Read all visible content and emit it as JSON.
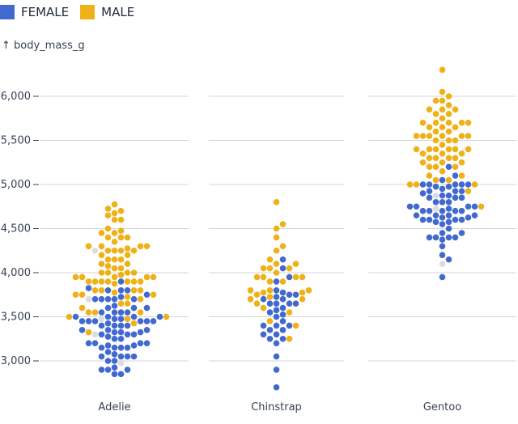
{
  "legend": {
    "female": "FEMALE",
    "male": "MALE"
  },
  "chart_data": {
    "type": "scatter",
    "subtype": "beeswarm",
    "ylabel": "↑ body_mass_g",
    "yticks": [
      3000,
      3500,
      4000,
      4500,
      5000,
      5500,
      6000
    ],
    "ytick_labels": [
      "3,000",
      "3,500",
      "4,000",
      "4,500",
      "5,000",
      "5,500",
      "6,000"
    ],
    "ylim": [
      2600,
      6400
    ],
    "grid": true,
    "legend_position": "top-left",
    "colors": {
      "FEMALE": "#4269d0",
      "MALE": "#efb118",
      "null": "#dddddd"
    },
    "facets": [
      {
        "species": "Adelie",
        "FEMALE": [
          3475,
          3250,
          3450,
          3625,
          3200,
          3700,
          3450,
          3325,
          3400,
          3800,
          3800,
          3200,
          3150,
          3250,
          3300,
          3325,
          3100,
          3300,
          3000,
          3450,
          3150,
          3500,
          3450,
          2900,
          3550,
          2850,
          3150,
          3600,
          2850,
          3350,
          3050,
          3600,
          3550,
          3700,
          3700,
          3550,
          3200,
          3800,
          3350,
          3500,
          3600,
          3550,
          3400,
          3300,
          3700,
          2900,
          3725,
          3075,
          2925,
          3750,
          3175,
          3825,
          3200,
          3900,
          2900,
          3350,
          3150,
          3450,
          3050,
          3275,
          3050,
          3325,
          3500,
          3425,
          3175,
          3400,
          3400,
          3050,
          3000,
          3475,
          3450,
          3700,
          3500
        ],
        "MALE": [
          3750,
          3650,
          4675,
          3800,
          4400,
          4500,
          4200,
          3600,
          3950,
          3800,
          3550,
          3950,
          3900,
          3900,
          4150,
          3950,
          4650,
          3900,
          4400,
          4600,
          3425,
          4150,
          4300,
          4050,
          3700,
          3800,
          3750,
          4400,
          4050,
          3950,
          4100,
          4450,
          3900,
          4150,
          4250,
          3900,
          4000,
          4700,
          4200,
          3550,
          3800,
          3950,
          4300,
          4450,
          4300,
          4350,
          4100,
          4725,
          4250,
          3550,
          3900,
          4775,
          4600,
          4275,
          4075,
          3775,
          3325,
          3500,
          3875,
          4000,
          4300,
          4000,
          3500,
          4475,
          3900,
          3975,
          4250,
          3475,
          3725,
          3650,
          4250,
          3750,
          4000
        ],
        "null": [
          4250,
          3700,
          3475,
          3300,
          2975
        ]
      },
      {
        "species": "Chinstrap",
        "FEMALE": [
          3500,
          3900,
          3650,
          3525,
          3725,
          3950,
          3250,
          3750,
          4150,
          3700,
          3800,
          3775,
          3700,
          4050,
          3575,
          3050,
          3300,
          3650,
          3450,
          3400,
          3600,
          2900,
          3400,
          3300,
          3350,
          3250,
          3400,
          3650,
          3350,
          2700,
          3650,
          3750,
          3550,
          3200
        ],
        "MALE": [
          3900,
          3800,
          4550,
          3950,
          4050,
          4400,
          4050,
          3700,
          3250,
          4050,
          3725,
          3650,
          3800,
          3450,
          4100,
          3950,
          4300,
          3900,
          4500,
          3750,
          3800,
          4800,
          4150,
          4100,
          3600,
          3775,
          3950,
          4000,
          3700,
          3550,
          3775,
          3400,
          4250,
          3950
        ],
        "null": []
      },
      {
        "species": "Gentoo",
        "FEMALE": [
          4500,
          4450,
          4550,
          4800,
          4400,
          4650,
          4650,
          4200,
          4150,
          4800,
          5000,
          4400,
          5000,
          4600,
          4700,
          5050,
          4750,
          4600,
          4625,
          4725,
          4750,
          4600,
          4875,
          4950,
          4750,
          4850,
          4875,
          4625,
          4850,
          4975,
          4700,
          4575,
          5000,
          4650,
          4375,
          4925,
          4850,
          5200,
          4400,
          4925,
          4700,
          4575,
          4975,
          4650,
          5100,
          4700,
          4400,
          4450,
          5000,
          4300,
          4800,
          4700,
          5000,
          4900,
          4600,
          3950,
          4750,
          4925
        ],
        "MALE": [
          5700,
          5700,
          5400,
          5200,
          5150,
          5550,
          5850,
          5850,
          6300,
          5350,
          5700,
          5050,
          5100,
          5650,
          5550,
          5250,
          6050,
          5400,
          5250,
          5350,
          5700,
          4750,
          5550,
          5400,
          5300,
          5300,
          5000,
          5050,
          5000,
          5550,
          5300,
          5650,
          5700,
          5800,
          5550,
          5000,
          5100,
          5800,
          6000,
          5950,
          5450,
          5350,
          5600,
          5300,
          5550,
          5400,
          5650,
          5200,
          4925,
          5250,
          5600,
          5500,
          5500,
          5950,
          5500,
          5850,
          5200,
          5400,
          5750,
          5400,
          5900
        ],
        "null": [
          4100,
          4725,
          4875
        ]
      }
    ]
  }
}
